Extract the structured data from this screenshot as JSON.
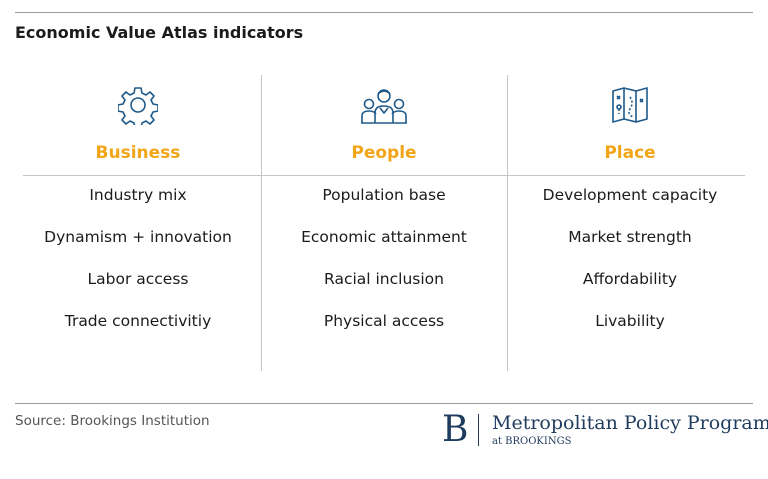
{
  "title": "Economic Value Atlas indicators",
  "colors": {
    "accent": "#f2a516",
    "icon": "#1f5a8a",
    "brand": "#1f3b5d"
  },
  "columns": [
    {
      "icon": "gear-icon",
      "heading": "Business",
      "items": [
        "Industry mix",
        "Dynamism + innovation",
        "Labor access",
        "Trade connectivitiy"
      ]
    },
    {
      "icon": "people-icon",
      "heading": "People",
      "items": [
        "Population base",
        "Economic attainment",
        "Racial inclusion",
        "Physical access"
      ]
    },
    {
      "icon": "map-icon",
      "heading": "Place",
      "items": [
        "Development capacity",
        "Market strength",
        "Affordability",
        "Livability"
      ]
    }
  ],
  "footer": {
    "source": "Source: Brookings Institution",
    "logo_letter": "B",
    "logo_name": "Metropolitan Policy Program",
    "logo_sub": "at BROOKINGS"
  }
}
